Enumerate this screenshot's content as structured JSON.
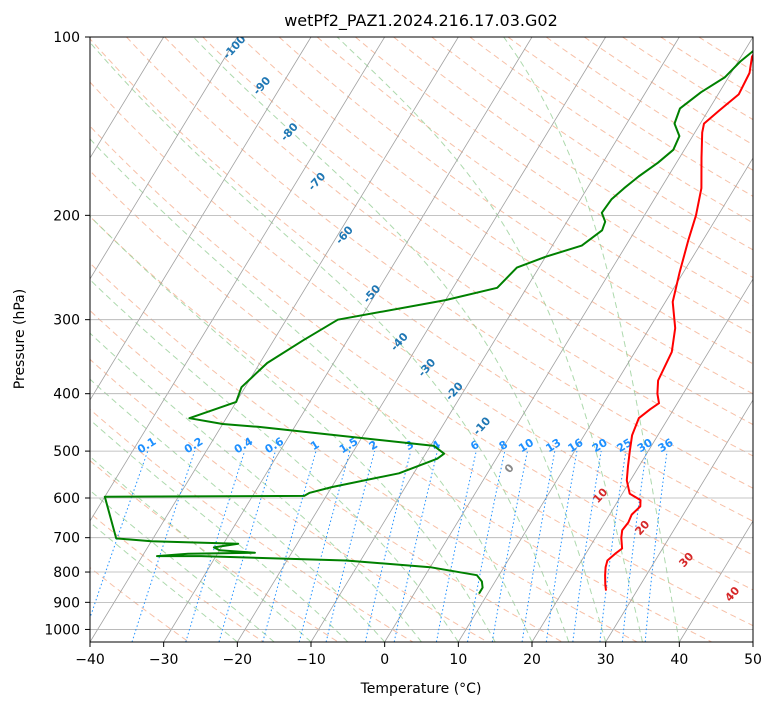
{
  "chart_data": {
    "type": "line",
    "title": "wetPf2_PAZ1.2024.216.17.03.G02",
    "xlabel": "Temperature (°C)",
    "ylabel": "Pressure (hPa)",
    "xlim": [
      -40,
      50
    ],
    "ylim": [
      1050,
      100
    ],
    "y_scale": "log",
    "x_ticks": [
      -40,
      -30,
      -20,
      -10,
      0,
      10,
      20,
      30,
      40,
      50
    ],
    "x_tick_labels": [
      "−40",
      "−30",
      "−20",
      "−10",
      "0",
      "10",
      "20",
      "30",
      "40",
      "50"
    ],
    "y_ticks": [
      100,
      200,
      300,
      400,
      500,
      600,
      700,
      800,
      900,
      1000
    ],
    "y_tick_labels": [
      "100",
      "200",
      "300",
      "400",
      "500",
      "600",
      "700",
      "800",
      "900",
      "1000"
    ],
    "grid": true,
    "legend": "none",
    "colors": {
      "temperature": "#ff0000",
      "dewpoint": "#008000",
      "grid": "#b0b0b0",
      "skew_isotherms": "#a0a0a0",
      "dry_adiabats": "#f4a582",
      "moist_adiabats": "#98d098",
      "mixing_ratio": "#1e90ff",
      "dry_labels": "#1f77b4",
      "moist_labels": "#d62728"
    },
    "series": [
      {
        "role": "temperature",
        "points": [
          [
            25.8,
            860
          ],
          [
            25.2,
            840
          ],
          [
            24.4,
            810
          ],
          [
            23.8,
            785
          ],
          [
            23.5,
            765
          ],
          [
            24.0,
            745
          ],
          [
            24.5,
            730
          ],
          [
            24.0,
            715
          ],
          [
            23.5,
            700
          ],
          [
            23.0,
            680
          ],
          [
            23.2,
            660
          ],
          [
            23.0,
            640
          ],
          [
            23.5,
            620
          ],
          [
            23.0,
            605
          ],
          [
            21.0,
            590
          ],
          [
            19.5,
            560
          ],
          [
            18.5,
            530
          ],
          [
            17.5,
            500
          ],
          [
            16.5,
            470
          ],
          [
            16.0,
            440
          ],
          [
            16.8,
            425
          ],
          [
            17.5,
            415
          ],
          [
            16.5,
            400
          ],
          [
            15.5,
            380
          ],
          [
            15.0,
            340
          ],
          [
            13.5,
            310
          ],
          [
            11.0,
            280
          ],
          [
            9.5,
            250
          ],
          [
            8.0,
            220
          ],
          [
            7.0,
            200
          ],
          [
            5.5,
            180
          ],
          [
            3.0,
            160
          ],
          [
            1.0,
            145
          ],
          [
            0.5,
            140
          ],
          [
            1.5,
            133
          ],
          [
            2.8,
            125
          ],
          [
            2.5,
            115
          ],
          [
            1.5,
            108
          ],
          [
            1.5,
            102
          ],
          [
            2.0,
            100
          ]
        ]
      },
      {
        "role": "dewpoint",
        "points": [
          [
            8.8,
            870
          ],
          [
            8.8,
            850
          ],
          [
            8.2,
            830
          ],
          [
            7.0,
            810
          ],
          [
            0.0,
            785
          ],
          [
            -12.0,
            765
          ],
          [
            -32.0,
            752
          ],
          [
            -38.0,
            752
          ],
          [
            -34.0,
            745
          ],
          [
            -25.0,
            742
          ],
          [
            -30.0,
            735
          ],
          [
            -31.0,
            727
          ],
          [
            -28.0,
            717
          ],
          [
            -40.0,
            710
          ],
          [
            -45.0,
            702
          ],
          [
            -50.0,
            597
          ],
          [
            -23.0,
            595
          ],
          [
            -22.5,
            588
          ],
          [
            -20.0,
            575
          ],
          [
            -12.0,
            545
          ],
          [
            -8.0,
            515
          ],
          [
            -7.5,
            505
          ],
          [
            -9.5,
            490
          ],
          [
            -35.0,
            455
          ],
          [
            -40.0,
            450
          ],
          [
            -45.0,
            440
          ],
          [
            -40.0,
            413
          ],
          [
            -40.5,
            390
          ],
          [
            -39.0,
            355
          ],
          [
            -36.0,
            325
          ],
          [
            -33.0,
            300
          ],
          [
            -20.0,
            278
          ],
          [
            -14.0,
            265
          ],
          [
            -13.0,
            245
          ],
          [
            -10.0,
            235
          ],
          [
            -6.0,
            225
          ],
          [
            -4.5,
            212
          ],
          [
            -4.8,
            205
          ],
          [
            -6.0,
            198
          ],
          [
            -5.8,
            188
          ],
          [
            -5.0,
            180
          ],
          [
            -4.0,
            172
          ],
          [
            -2.5,
            163
          ],
          [
            -1.5,
            155
          ],
          [
            -1.8,
            147
          ],
          [
            -3.5,
            140
          ],
          [
            -4.0,
            132
          ],
          [
            -2.5,
            124
          ],
          [
            -0.5,
            117
          ],
          [
            0.3,
            110
          ],
          [
            1.5,
            104
          ],
          [
            2.0,
            100
          ]
        ]
      }
    ],
    "dry_adiabat_labels": [
      "-100",
      "-90",
      "-80",
      "-70",
      "-60",
      "-50",
      "-40",
      "-30",
      "-20",
      "-10",
      "0"
    ],
    "moist_adiabat_labels": [
      "10",
      "20",
      "30",
      "40"
    ],
    "mixing_ratio_labels": [
      "0.1",
      "0.2",
      "0.4",
      "0.6",
      "1",
      "1.5",
      "2",
      "3",
      "4",
      "6",
      "8",
      "10",
      "13",
      "16",
      "20",
      "25",
      "30",
      "36"
    ]
  }
}
